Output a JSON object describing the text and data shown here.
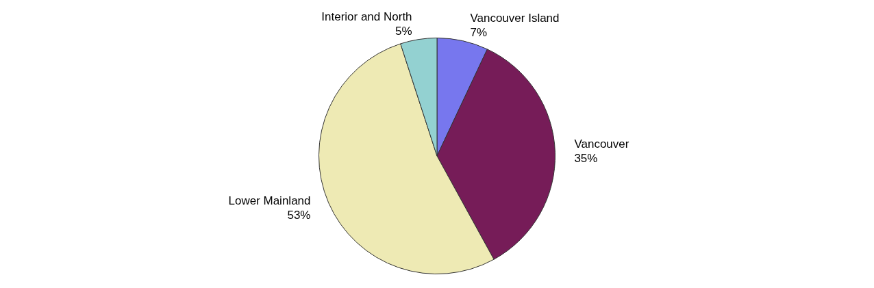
{
  "chart_data": {
    "type": "pie",
    "categories": [
      "Vancouver Island",
      "Vancouver",
      "Lower Mainland",
      "Interior and North"
    ],
    "values": [
      7,
      35,
      53,
      5
    ],
    "value_labels": [
      "7%",
      "35%",
      "53%",
      "5%"
    ],
    "colors": [
      "#7777ee",
      "#761c58",
      "#eeeab4",
      "#93d1d1"
    ]
  }
}
